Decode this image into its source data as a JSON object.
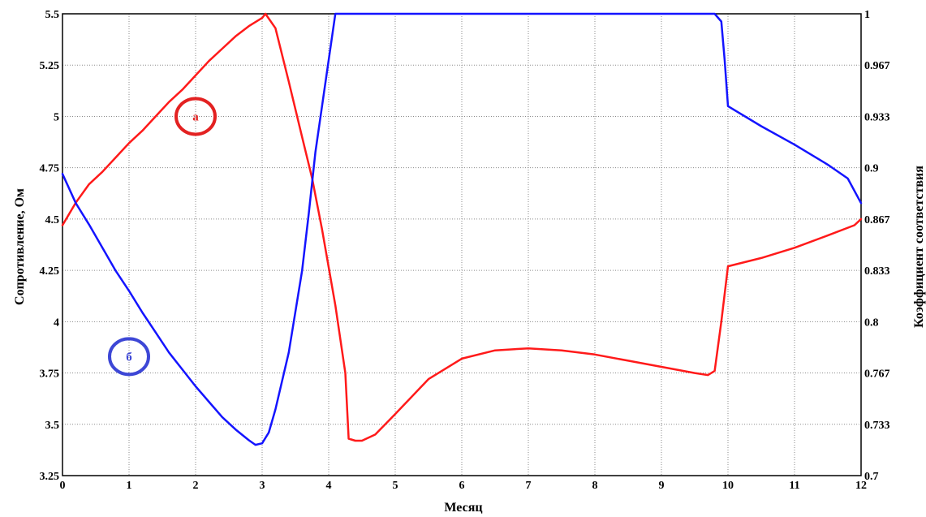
{
  "chart_data": {
    "type": "line",
    "xlabel": "Месяц",
    "ylabel_left": "Сопротивление, Ом",
    "ylabel_right": "Коэффициент соответствия",
    "xlim": [
      0,
      12
    ],
    "ylim_left": [
      3.25,
      5.5
    ],
    "ylim_right": [
      0.7,
      1.0
    ],
    "x_ticks": [
      "0",
      "1",
      "2",
      "3",
      "4",
      "5",
      "6",
      "7",
      "8",
      "9",
      "10",
      "11",
      "12"
    ],
    "y_left_ticks": [
      "3.25",
      "3.5",
      "3.75",
      "4",
      "4.25",
      "4.5",
      "4.75",
      "5",
      "5.25",
      "5.5"
    ],
    "y_right_ticks": [
      "0.7",
      "0.733",
      "0.767",
      "0.8",
      "0.833",
      "0.867",
      "0.9",
      "0.933",
      "0.967",
      "1"
    ],
    "grid": true,
    "annotations": [
      {
        "label": "а",
        "color": "#e32121",
        "x": 2.0,
        "y": 5.0
      },
      {
        "label": "б",
        "color": "#3d47d6",
        "x": 1.0,
        "y": 3.83
      }
    ],
    "series": [
      {
        "color": "#ff1a1a",
        "axis": "left",
        "x": [
          0,
          0.2,
          0.4,
          0.6,
          0.8,
          1.0,
          1.2,
          1.4,
          1.6,
          1.8,
          2.0,
          2.2,
          2.4,
          2.6,
          2.8,
          3.0,
          3.05,
          3.2,
          3.4,
          3.6,
          3.75,
          3.9,
          4.1,
          4.25,
          4.3,
          4.4,
          4.5,
          4.7,
          5.0,
          5.5,
          6.0,
          6.5,
          7.0,
          7.5,
          8.0,
          8.5,
          9.0,
          9.5,
          9.7,
          9.8,
          9.9,
          10.0,
          10.5,
          11.0,
          11.5,
          11.9,
          12.0
        ],
        "y": [
          4.47,
          4.58,
          4.67,
          4.73,
          4.8,
          4.87,
          4.93,
          5.0,
          5.07,
          5.13,
          5.2,
          5.27,
          5.33,
          5.39,
          5.44,
          5.48,
          5.5,
          5.43,
          5.17,
          4.9,
          4.7,
          4.45,
          4.08,
          3.75,
          3.43,
          3.42,
          3.42,
          3.45,
          3.55,
          3.72,
          3.82,
          3.86,
          3.87,
          3.86,
          3.84,
          3.81,
          3.78,
          3.75,
          3.74,
          3.76,
          4.0,
          4.27,
          4.31,
          4.36,
          4.42,
          4.47,
          4.5
        ]
      },
      {
        "color": "#1414ff",
        "axis": "right",
        "x": [
          0,
          0.2,
          0.4,
          0.6,
          0.8,
          1.0,
          1.2,
          1.4,
          1.6,
          1.8,
          2.0,
          2.2,
          2.4,
          2.6,
          2.8,
          2.9,
          3.0,
          3.1,
          3.2,
          3.4,
          3.6,
          3.7,
          3.8,
          4.0,
          4.1,
          4.2,
          5.0,
          6.0,
          7.0,
          8.0,
          9.0,
          9.5,
          9.8,
          9.9,
          9.95,
          10.0,
          10.5,
          11.0,
          11.5,
          11.8,
          12.0
        ],
        "y": [
          0.896,
          0.877,
          0.863,
          0.848,
          0.833,
          0.82,
          0.806,
          0.793,
          0.78,
          0.769,
          0.758,
          0.748,
          0.738,
          0.73,
          0.723,
          0.72,
          0.721,
          0.728,
          0.743,
          0.78,
          0.833,
          0.87,
          0.91,
          0.97,
          1.0,
          1.0,
          1.0,
          1.0,
          1.0,
          1.0,
          1.0,
          1.0,
          1.0,
          0.995,
          0.97,
          0.94,
          0.927,
          0.915,
          0.902,
          0.893,
          0.877
        ]
      }
    ]
  }
}
